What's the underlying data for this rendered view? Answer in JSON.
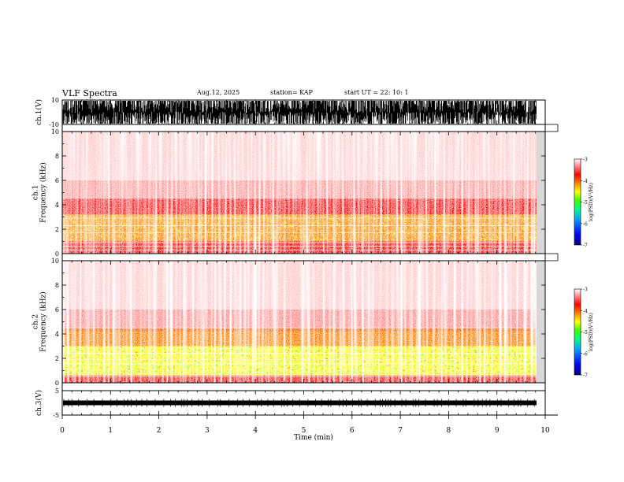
{
  "header": {
    "title": "VLF Spectra",
    "date": "Aug.12, 2025",
    "station": "station= KAP",
    "start": "start  UT =   22: 10: 1"
  },
  "chart_data": [
    {
      "type": "line",
      "name": "ch1-waveform",
      "ylabel": "ch.1(V)",
      "ylim": [
        -10,
        10
      ],
      "ytick_labels": [
        "10",
        "-10"
      ],
      "xlim": [
        0,
        10
      ],
      "description_values": "dense noise saturating between about -10 and 10 V"
    },
    {
      "type": "heatmap",
      "name": "ch1-spectrogram",
      "ylabel": "ch.1\nFrequency (kHz)",
      "ylabel_line1": "ch.1",
      "ylabel_line2": "Frequency (kHz)",
      "ylim": [
        0,
        10
      ],
      "yticks": [
        0,
        2,
        4,
        6,
        8,
        10
      ],
      "ytick_labels": [
        "0",
        "2",
        "4",
        "6",
        "8",
        "10"
      ],
      "xlim": [
        0,
        10
      ],
      "data_xmax": 9.82,
      "colorbar": {
        "label": "log(PSD)(V²/Hz)",
        "range": [
          -7,
          -3
        ],
        "tick_labels": [
          "-3",
          "-4",
          "-5",
          "-6",
          "-7"
        ]
      },
      "bands_kHz": [
        {
          "from": 0.0,
          "to": 1.0,
          "level": -3.4
        },
        {
          "from": 1.0,
          "to": 3.2,
          "level": -4.1
        },
        {
          "from": 3.2,
          "to": 4.5,
          "level": -3.7
        },
        {
          "from": 4.5,
          "to": 10.0,
          "level": -3.1
        }
      ]
    },
    {
      "type": "heatmap",
      "name": "ch2-spectrogram",
      "ylabel": "ch.2\nFrequency (kHz)",
      "ylabel_line1": "ch.2",
      "ylabel_line2": "Frequency (kHz)",
      "ylim": [
        0,
        10
      ],
      "yticks": [
        0,
        2,
        4,
        6,
        8,
        10
      ],
      "ytick_labels": [
        "0",
        "2",
        "4",
        "6",
        "8",
        "10"
      ],
      "xlim": [
        0,
        10
      ],
      "data_xmax": 9.82,
      "colorbar": {
        "label": "log(PSD)(V²/Hz)",
        "range": [
          -7,
          -3
        ],
        "tick_labels": [
          "-3",
          "-4",
          "-5",
          "-6",
          "-7"
        ]
      },
      "bands_kHz": [
        {
          "from": 0.0,
          "to": 0.6,
          "level": -3.4
        },
        {
          "from": 0.6,
          "to": 3.0,
          "level": -4.6
        },
        {
          "from": 3.0,
          "to": 4.5,
          "level": -3.8
        },
        {
          "from": 4.5,
          "to": 10.0,
          "level": -3.1
        }
      ]
    },
    {
      "type": "line",
      "name": "ch3-waveform",
      "ylabel": "ch.3(V)",
      "ylim": [
        -5,
        5
      ],
      "ytick_labels": [
        "5",
        "-5"
      ],
      "xlim": [
        0,
        10
      ],
      "level_V": 0,
      "xlabel": "Time (min)",
      "xticks": [
        0,
        1,
        2,
        3,
        4,
        5,
        6,
        7,
        8,
        9,
        10
      ],
      "xtick_labels": [
        "0",
        "1",
        "2",
        "3",
        "4",
        "5",
        "6",
        "7",
        "8",
        "9",
        "10"
      ]
    }
  ],
  "colors": {
    "colormap": [
      "#000080",
      "#0000ff",
      "#00a0ff",
      "#00ff80",
      "#40ff00",
      "#ffff00",
      "#ff8000",
      "#ff0000",
      "#ffffff"
    ],
    "trace": "#000000"
  }
}
